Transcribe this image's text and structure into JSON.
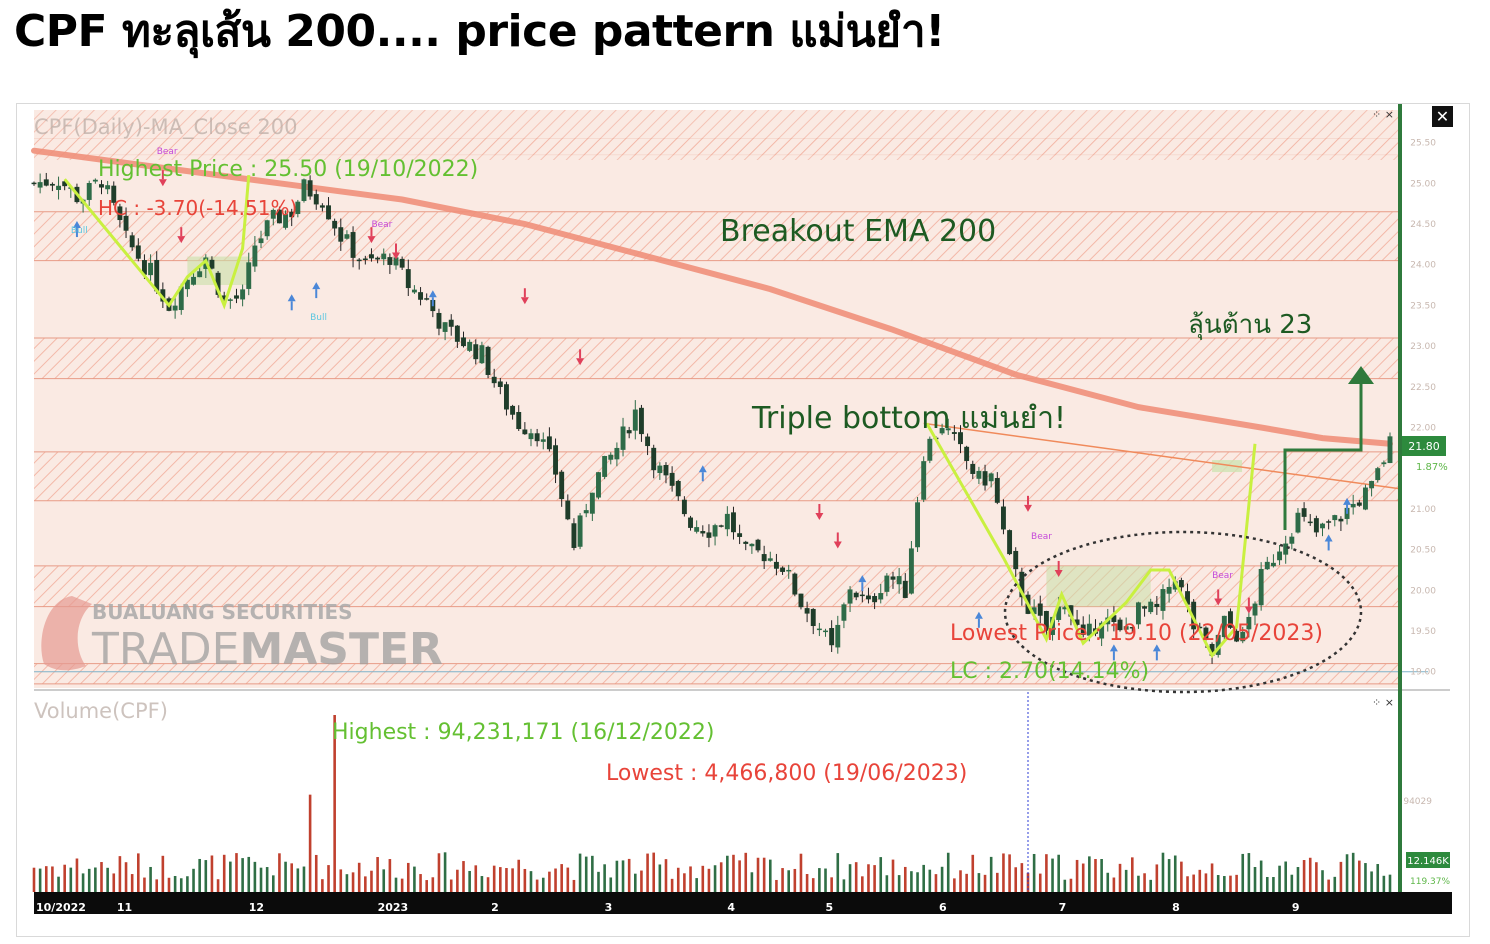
{
  "headline": "CPF ทะลุเส้น 200.... price pattern แม่นยำ!",
  "chart_data": {
    "type": "candlestick",
    "title": "CPF(Daily)-MA_Close 200",
    "volume_title": "Volume(CPF)",
    "ylim": [
      18.8,
      25.9
    ],
    "y_ticks": [
      "25.50",
      "25.00",
      "24.50",
      "24.00",
      "23.50",
      "23.00",
      "22.50",
      "22.00",
      "21.00",
      "20.50",
      "20.00",
      "19.50",
      "19.00"
    ],
    "x_ticks": [
      "10/2022",
      "11",
      "12",
      "2023",
      "2",
      "3",
      "4",
      "5",
      "6",
      "7",
      "8",
      "9"
    ],
    "last_price": "21.80",
    "last_change": "1.87%",
    "last_volume": "12.146K",
    "volume_ratio": "119.37%",
    "volume_axis_label": "94029",
    "volume_max": 94231171,
    "volume_min": 4466800,
    "price_path": [
      [
        0,
        25.0
      ],
      [
        8,
        25.05
      ],
      [
        15,
        24.8
      ],
      [
        22,
        25.05
      ],
      [
        30,
        24.3
      ],
      [
        38,
        23.9
      ],
      [
        44,
        23.5
      ],
      [
        50,
        23.85
      ],
      [
        56,
        24.1
      ],
      [
        62,
        23.55
      ],
      [
        68,
        23.6
      ],
      [
        72,
        24.25
      ],
      [
        78,
        24.55
      ],
      [
        84,
        24.65
      ],
      [
        88,
        24.95
      ],
      [
        94,
        24.8
      ],
      [
        100,
        24.35
      ],
      [
        108,
        24.0
      ],
      [
        116,
        24.1
      ],
      [
        122,
        23.75
      ],
      [
        128,
        23.55
      ],
      [
        134,
        23.2
      ],
      [
        140,
        23.05
      ],
      [
        146,
        22.9
      ],
      [
        152,
        22.4
      ],
      [
        158,
        22.05
      ],
      [
        164,
        21.95
      ],
      [
        170,
        21.45
      ],
      [
        176,
        20.55
      ],
      [
        182,
        21.3
      ],
      [
        190,
        21.75
      ],
      [
        196,
        22.2
      ],
      [
        202,
        21.6
      ],
      [
        208,
        21.2
      ],
      [
        214,
        20.85
      ],
      [
        220,
        20.75
      ],
      [
        226,
        20.9
      ],
      [
        232,
        20.45
      ],
      [
        238,
        20.45
      ],
      [
        244,
        20.3
      ],
      [
        250,
        19.85
      ],
      [
        256,
        19.55
      ],
      [
        260,
        19.25
      ],
      [
        266,
        20.05
      ],
      [
        272,
        19.8
      ],
      [
        278,
        20.2
      ],
      [
        284,
        20.0
      ],
      [
        290,
        21.7
      ],
      [
        296,
        22.05
      ],
      [
        302,
        21.7
      ],
      [
        308,
        21.35
      ],
      [
        312,
        21.4
      ],
      [
        318,
        20.35
      ],
      [
        324,
        19.8
      ],
      [
        330,
        19.5
      ],
      [
        336,
        19.9
      ],
      [
        342,
        19.35
      ],
      [
        348,
        19.7
      ],
      [
        354,
        19.45
      ],
      [
        360,
        19.75
      ],
      [
        366,
        19.75
      ],
      [
        372,
        20.2
      ],
      [
        378,
        19.55
      ],
      [
        384,
        19.2
      ],
      [
        388,
        19.6
      ],
      [
        394,
        19.4
      ],
      [
        400,
        20.15
      ],
      [
        406,
        20.55
      ],
      [
        412,
        20.9
      ],
      [
        418,
        20.7
      ],
      [
        424,
        20.85
      ],
      [
        430,
        21.05
      ],
      [
        436,
        21.25
      ],
      [
        442,
        21.8
      ]
    ],
    "ema200_path": [
      [
        0,
        25.4
      ],
      [
        40,
        25.2
      ],
      [
        80,
        25.0
      ],
      [
        120,
        24.8
      ],
      [
        160,
        24.5
      ],
      [
        200,
        24.1
      ],
      [
        240,
        23.7
      ],
      [
        280,
        23.2
      ],
      [
        320,
        22.65
      ],
      [
        360,
        22.25
      ],
      [
        400,
        22.0
      ],
      [
        420,
        21.87
      ],
      [
        442,
        21.8
      ]
    ],
    "annotations": {
      "highest_price": "Highest Price : 25.50 (19/10/2022)",
      "hc": "HC : -3.70(-14.51%)",
      "lowest_price": "Lowest Price : 19.10 (22/05/2023)",
      "lc": "LC : 2.70(14.14%)",
      "vol_highest": "Highest : 94,231,171 (16/12/2022)",
      "vol_lowest": "Lowest : 4,466,800 (19/06/2023)",
      "breakout": "Breakout EMA 200",
      "resistance": "ลุ้นต้าน 23",
      "triple_bottom": "Triple bottom แม่นยำ!"
    },
    "signal_labels": {
      "bull": "Bull",
      "bear": "Bear"
    }
  },
  "watermark": {
    "line1": "BUALUANG SECURITIES",
    "line2a": "TRADE",
    "line2b": "MASTER"
  },
  "close_label": "✕",
  "panel_icon": "⁘ ×",
  "colors": {
    "up": "#2e6b48",
    "down": "#b3362b",
    "ema": "#f0907a",
    "zone": "#f2c4b8",
    "band_line": "#e79b86",
    "green_text": "#64c032",
    "red_text": "#e8443a",
    "dark_green": "#1d5a22",
    "pattern": "#c9f040",
    "bg": "#faeae3"
  }
}
